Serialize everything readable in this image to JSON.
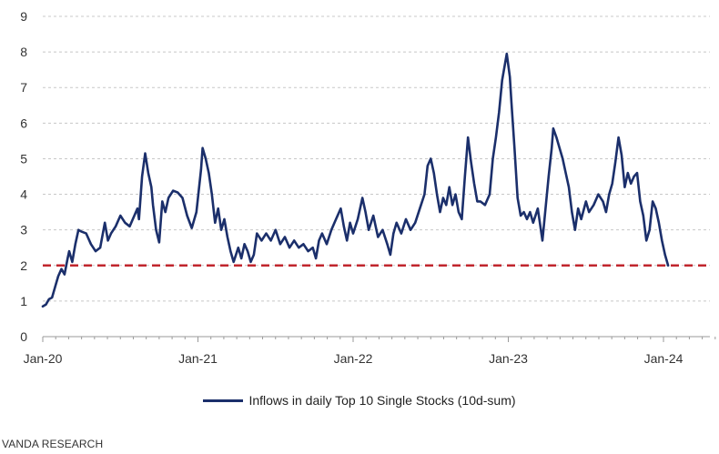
{
  "chart_data": {
    "type": "line",
    "title": "",
    "xlabel": "",
    "ylabel": "",
    "ylim": [
      0,
      9
    ],
    "y_ticks": [
      "0",
      "1",
      "2",
      "3",
      "4",
      "5",
      "6",
      "7",
      "8",
      "9"
    ],
    "x_ticks": [
      {
        "label": "Jan-20",
        "t": 0
      },
      {
        "label": "Jan-21",
        "t": 1
      },
      {
        "label": "Jan-22",
        "t": 2
      },
      {
        "label": "Jan-23",
        "t": 3
      },
      {
        "label": "Jan-24",
        "t": 4
      }
    ],
    "xlim": [
      0,
      4.33
    ],
    "grid": "horizontal-dashed",
    "reference_line": {
      "y": 2,
      "style": "dashed",
      "color": "#c0262d"
    },
    "series": [
      {
        "name": "Inflows in daily Top 10 Single Stocks (10d-sum)",
        "color": "#1b2f6b",
        "points": [
          [
            0.0,
            0.85
          ],
          [
            0.02,
            0.9
          ],
          [
            0.04,
            1.05
          ],
          [
            0.06,
            1.1
          ],
          [
            0.08,
            1.4
          ],
          [
            0.1,
            1.7
          ],
          [
            0.12,
            1.9
          ],
          [
            0.14,
            1.75
          ],
          [
            0.16,
            2.2
          ],
          [
            0.17,
            2.4
          ],
          [
            0.19,
            2.1
          ],
          [
            0.21,
            2.6
          ],
          [
            0.23,
            3.0
          ],
          [
            0.25,
            2.95
          ],
          [
            0.28,
            2.9
          ],
          [
            0.31,
            2.6
          ],
          [
            0.34,
            2.4
          ],
          [
            0.37,
            2.5
          ],
          [
            0.4,
            3.2
          ],
          [
            0.42,
            2.7
          ],
          [
            0.44,
            2.9
          ],
          [
            0.47,
            3.1
          ],
          [
            0.5,
            3.4
          ],
          [
            0.53,
            3.2
          ],
          [
            0.56,
            3.1
          ],
          [
            0.59,
            3.4
          ],
          [
            0.61,
            3.6
          ],
          [
            0.62,
            3.3
          ],
          [
            0.64,
            4.5
          ],
          [
            0.66,
            5.15
          ],
          [
            0.68,
            4.6
          ],
          [
            0.7,
            4.2
          ],
          [
            0.71,
            3.7
          ],
          [
            0.73,
            3.0
          ],
          [
            0.75,
            2.65
          ],
          [
            0.77,
            3.8
          ],
          [
            0.79,
            3.5
          ],
          [
            0.81,
            3.9
          ],
          [
            0.84,
            4.1
          ],
          [
            0.87,
            4.05
          ],
          [
            0.9,
            3.9
          ],
          [
            0.93,
            3.4
          ],
          [
            0.96,
            3.05
          ],
          [
            0.99,
            3.5
          ],
          [
            1.02,
            4.7
          ],
          [
            1.03,
            5.3
          ],
          [
            1.05,
            5.0
          ],
          [
            1.07,
            4.6
          ],
          [
            1.09,
            4.0
          ],
          [
            1.11,
            3.2
          ],
          [
            1.13,
            3.6
          ],
          [
            1.15,
            3.0
          ],
          [
            1.17,
            3.3
          ],
          [
            1.19,
            2.8
          ],
          [
            1.21,
            2.4
          ],
          [
            1.23,
            2.1
          ],
          [
            1.26,
            2.5
          ],
          [
            1.28,
            2.2
          ],
          [
            1.3,
            2.6
          ],
          [
            1.32,
            2.4
          ],
          [
            1.34,
            2.1
          ],
          [
            1.36,
            2.3
          ],
          [
            1.38,
            2.9
          ],
          [
            1.41,
            2.7
          ],
          [
            1.44,
            2.9
          ],
          [
            1.47,
            2.7
          ],
          [
            1.5,
            3.0
          ],
          [
            1.53,
            2.6
          ],
          [
            1.56,
            2.8
          ],
          [
            1.59,
            2.5
          ],
          [
            1.62,
            2.7
          ],
          [
            1.65,
            2.5
          ],
          [
            1.68,
            2.6
          ],
          [
            1.71,
            2.4
          ],
          [
            1.74,
            2.5
          ],
          [
            1.76,
            2.2
          ],
          [
            1.78,
            2.7
          ],
          [
            1.8,
            2.9
          ],
          [
            1.83,
            2.6
          ],
          [
            1.86,
            3.0
          ],
          [
            1.89,
            3.3
          ],
          [
            1.92,
            3.6
          ],
          [
            1.94,
            3.1
          ],
          [
            1.96,
            2.7
          ],
          [
            1.98,
            3.2
          ],
          [
            2.0,
            2.9
          ],
          [
            2.03,
            3.3
          ],
          [
            2.06,
            3.9
          ],
          [
            2.08,
            3.5
          ],
          [
            2.1,
            3.0
          ],
          [
            2.13,
            3.4
          ],
          [
            2.16,
            2.8
          ],
          [
            2.19,
            3.0
          ],
          [
            2.22,
            2.6
          ],
          [
            2.24,
            2.3
          ],
          [
            2.26,
            2.9
          ],
          [
            2.28,
            3.2
          ],
          [
            2.31,
            2.9
          ],
          [
            2.34,
            3.3
          ],
          [
            2.37,
            3.0
          ],
          [
            2.4,
            3.2
          ],
          [
            2.43,
            3.6
          ],
          [
            2.46,
            4.0
          ],
          [
            2.48,
            4.8
          ],
          [
            2.5,
            5.0
          ],
          [
            2.52,
            4.6
          ],
          [
            2.54,
            4.0
          ],
          [
            2.56,
            3.5
          ],
          [
            2.58,
            3.9
          ],
          [
            2.6,
            3.7
          ],
          [
            2.62,
            4.2
          ],
          [
            2.64,
            3.7
          ],
          [
            2.66,
            4.0
          ],
          [
            2.68,
            3.5
          ],
          [
            2.7,
            3.3
          ],
          [
            2.72,
            4.5
          ],
          [
            2.74,
            5.6
          ],
          [
            2.76,
            4.9
          ],
          [
            2.78,
            4.3
          ],
          [
            2.8,
            3.8
          ],
          [
            2.82,
            3.8
          ],
          [
            2.85,
            3.7
          ],
          [
            2.88,
            4.0
          ],
          [
            2.9,
            5.0
          ],
          [
            2.92,
            5.6
          ],
          [
            2.94,
            6.3
          ],
          [
            2.96,
            7.2
          ],
          [
            2.98,
            7.7
          ],
          [
            2.99,
            7.95
          ],
          [
            3.01,
            7.3
          ],
          [
            3.02,
            6.6
          ],
          [
            3.04,
            5.3
          ],
          [
            3.06,
            3.9
          ],
          [
            3.08,
            3.4
          ],
          [
            3.1,
            3.5
          ],
          [
            3.12,
            3.3
          ],
          [
            3.14,
            3.5
          ],
          [
            3.16,
            3.2
          ],
          [
            3.19,
            3.6
          ],
          [
            3.22,
            2.7
          ],
          [
            3.24,
            3.6
          ],
          [
            3.26,
            4.5
          ],
          [
            3.28,
            5.3
          ],
          [
            3.29,
            5.85
          ],
          [
            3.31,
            5.6
          ],
          [
            3.33,
            5.3
          ],
          [
            3.35,
            5.0
          ],
          [
            3.37,
            4.6
          ],
          [
            3.39,
            4.2
          ],
          [
            3.41,
            3.5
          ],
          [
            3.43,
            3.0
          ],
          [
            3.45,
            3.6
          ],
          [
            3.47,
            3.3
          ],
          [
            3.5,
            3.8
          ],
          [
            3.52,
            3.5
          ],
          [
            3.55,
            3.7
          ],
          [
            3.58,
            4.0
          ],
          [
            3.61,
            3.8
          ],
          [
            3.63,
            3.5
          ],
          [
            3.65,
            4.0
          ],
          [
            3.67,
            4.3
          ],
          [
            3.69,
            4.9
          ],
          [
            3.71,
            5.6
          ],
          [
            3.73,
            5.1
          ],
          [
            3.75,
            4.2
          ],
          [
            3.77,
            4.6
          ],
          [
            3.79,
            4.3
          ],
          [
            3.81,
            4.5
          ],
          [
            3.83,
            4.6
          ],
          [
            3.85,
            3.8
          ],
          [
            3.87,
            3.4
          ],
          [
            3.89,
            2.7
          ],
          [
            3.91,
            3.0
          ],
          [
            3.93,
            3.8
          ],
          [
            3.95,
            3.6
          ],
          [
            3.97,
            3.2
          ],
          [
            3.99,
            2.7
          ],
          [
            4.01,
            2.3
          ],
          [
            4.03,
            2.0
          ]
        ]
      }
    ]
  },
  "legend": {
    "label": "Inflows in daily Top 10 Single Stocks (10d-sum)"
  },
  "source": "VANDA RESEARCH"
}
